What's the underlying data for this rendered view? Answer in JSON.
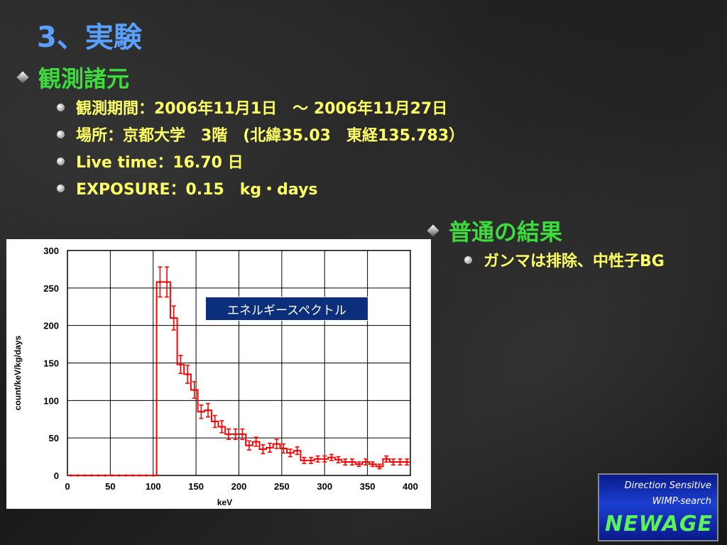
{
  "title": "3、実験",
  "section_obs": {
    "heading": "観測諸元",
    "items": [
      "観測期間：2006年11月1日　～ 2006年11月27日",
      "場所：京都大学　3階　(北緯35.03　東経135.783）",
      "Live time：16.70 日",
      "EXPOSURE：0.15　kg・days"
    ]
  },
  "section_result": {
    "heading": "普通の結果",
    "items": [
      "ガンマは排除、中性子BG"
    ]
  },
  "spectrum_label": "エネルギースペクトル",
  "logo": {
    "line1": "Direction Sensitive",
    "line2": "WIMP-search",
    "line3": "NEWAGE"
  },
  "colors": {
    "title": "#5aa0ff",
    "heading": "#3ddc3d",
    "bullet_text": "#ffff66",
    "series": "#ff0000"
  },
  "chart_data": {
    "type": "line",
    "xlabel": "keV",
    "ylabel": "count/keV/kg/days",
    "xlim": [
      0,
      400
    ],
    "ylim": [
      0,
      300
    ],
    "x_ticks": [
      0,
      50,
      100,
      150,
      200,
      250,
      300,
      350,
      400
    ],
    "y_ticks": [
      0,
      50,
      100,
      150,
      200,
      250,
      300
    ],
    "grid": true,
    "series": [
      {
        "bin_width": 8,
        "x": [
          4,
          12,
          20,
          28,
          36,
          44,
          52,
          60,
          68,
          76,
          84,
          92,
          100,
          108,
          116,
          124,
          132,
          140,
          148,
          156,
          164,
          172,
          180,
          188,
          196,
          204,
          212,
          220,
          228,
          236,
          244,
          252,
          260,
          268,
          276,
          284,
          292,
          300,
          308,
          316,
          324,
          332,
          340,
          348,
          356,
          364,
          372,
          380,
          388,
          396
        ],
        "y": [
          0,
          0,
          0,
          0,
          0,
          0,
          0,
          0,
          0,
          0,
          0,
          0,
          0,
          258,
          258,
          210,
          148,
          135,
          114,
          85,
          87,
          72,
          65,
          55,
          55,
          55,
          40,
          45,
          35,
          37,
          42,
          36,
          30,
          33,
          20,
          20,
          22,
          22,
          24,
          21,
          18,
          18,
          15,
          18,
          15,
          12,
          22,
          18,
          18,
          18
        ],
        "err": [
          0,
          0,
          0,
          0,
          0,
          0,
          0,
          0,
          0,
          0,
          0,
          0,
          0,
          20,
          20,
          16,
          12,
          12,
          11,
          9,
          9,
          8,
          8,
          7,
          7,
          7,
          6,
          6,
          6,
          6,
          6,
          6,
          5,
          5,
          4,
          4,
          4,
          4,
          4,
          4,
          4,
          4,
          3,
          4,
          3,
          3,
          4,
          4,
          4,
          4
        ]
      }
    ]
  }
}
